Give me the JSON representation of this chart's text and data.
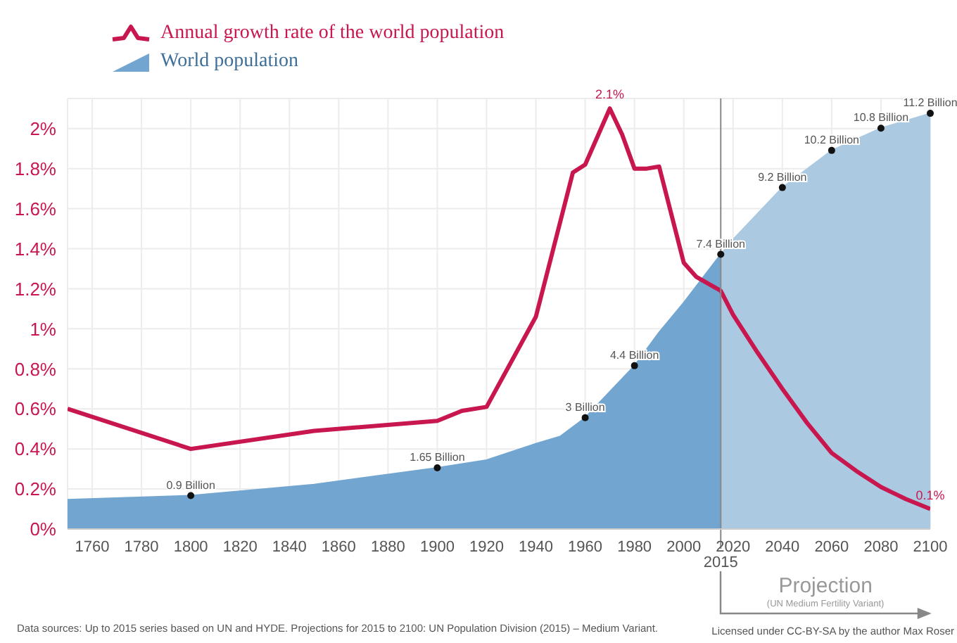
{
  "chart_data": {
    "type": "line",
    "legend": "top left",
    "grid": true,
    "xlim": [
      1750,
      2100
    ],
    "xticks": [
      1760,
      1780,
      1800,
      1820,
      1840,
      1860,
      1880,
      1900,
      1920,
      1940,
      1960,
      1980,
      2000,
      2020,
      2040,
      2060,
      2080,
      2100
    ],
    "ylim": [
      0,
      2.15
    ],
    "yticks": [
      {
        "value": 0,
        "label": "0%"
      },
      {
        "value": 0.2,
        "label": "0.2%"
      },
      {
        "value": 0.4,
        "label": "0.4%"
      },
      {
        "value": 0.6,
        "label": "0.6%"
      },
      {
        "value": 0.8,
        "label": "0.8%"
      },
      {
        "value": 1,
        "label": "1%"
      },
      {
        "value": 1.2,
        "label": "1.2%"
      },
      {
        "value": 1.4,
        "label": "1.4%"
      },
      {
        "value": 1.6,
        "label": "1.6%"
      },
      {
        "value": 1.8,
        "label": "1.8%"
      },
      {
        "value": 2,
        "label": "2%"
      }
    ],
    "y2lim": [
      0,
      11.6
    ],
    "ref_lines": [
      {
        "axis": "x",
        "value": 2015,
        "label": "2015",
        "color": "#888888"
      }
    ],
    "series": [
      {
        "name": "World population",
        "type": "area",
        "axis": "y2",
        "color": "#72a6d1",
        "x": [
          1750,
          1800,
          1850,
          1900,
          1920,
          1940,
          1950,
          1960,
          1970,
          1980,
          1990,
          2000,
          2015
        ],
        "values": [
          0.79,
          0.9,
          1.2,
          1.65,
          1.86,
          2.3,
          2.5,
          3.0,
          3.7,
          4.4,
          5.3,
          6.1,
          7.4
        ],
        "value_labels": [
          null,
          "0.9 Billion",
          null,
          "1.65 Billion",
          null,
          null,
          null,
          "3 Billion",
          null,
          "4.4 Billion",
          null,
          null,
          "7.4 Billion"
        ]
      },
      {
        "type": "area",
        "axis": "y2",
        "color": "#abc9e1",
        "x": [
          2015,
          2020,
          2030,
          2040,
          2050,
          2060,
          2070,
          2080,
          2090,
          2100
        ],
        "values": [
          7.4,
          7.8,
          8.5,
          9.2,
          9.7,
          10.2,
          10.5,
          10.8,
          11.0,
          11.2
        ],
        "value_labels": [
          null,
          null,
          null,
          "9.2 Billion",
          null,
          "10.2 Billion",
          null,
          "10.8 Billion",
          null,
          "11.2 Billion"
        ]
      },
      {
        "name": "Annual growth rate of the world population",
        "type": "line",
        "color": "#c8174f",
        "x": [
          1750,
          1800,
          1850,
          1900,
          1910,
          1920,
          1940,
          1955,
          1960,
          1970,
          1975,
          1980,
          1985,
          1990,
          2000,
          2005,
          2015,
          2020,
          2030,
          2040,
          2050,
          2060,
          2070,
          2080,
          2090,
          2100
        ],
        "values": [
          0.6,
          0.4,
          0.49,
          0.54,
          0.59,
          0.61,
          1.06,
          1.78,
          1.82,
          2.1,
          1.97,
          1.8,
          1.8,
          1.81,
          1.33,
          1.26,
          1.19,
          1.07,
          0.88,
          0.7,
          0.53,
          0.38,
          0.29,
          0.21,
          0.15,
          0.1
        ],
        "value_labels": [
          null,
          null,
          null,
          null,
          null,
          null,
          null,
          null,
          null,
          "2.1%",
          null,
          null,
          null,
          null,
          null,
          null,
          null,
          null,
          null,
          null,
          null,
          null,
          null,
          null,
          null,
          "0.1%"
        ]
      }
    ],
    "annotations": [
      "Projection",
      "(UN Medium Fertility Variant)",
      "Data sources:  Up to 2015 series based on UN and HYDE. Projections for 2015 to 2100: UN Population Division (2015) – Medium Variant.",
      "Licensed under CC-BY-SA by the author Max Roser"
    ]
  }
}
